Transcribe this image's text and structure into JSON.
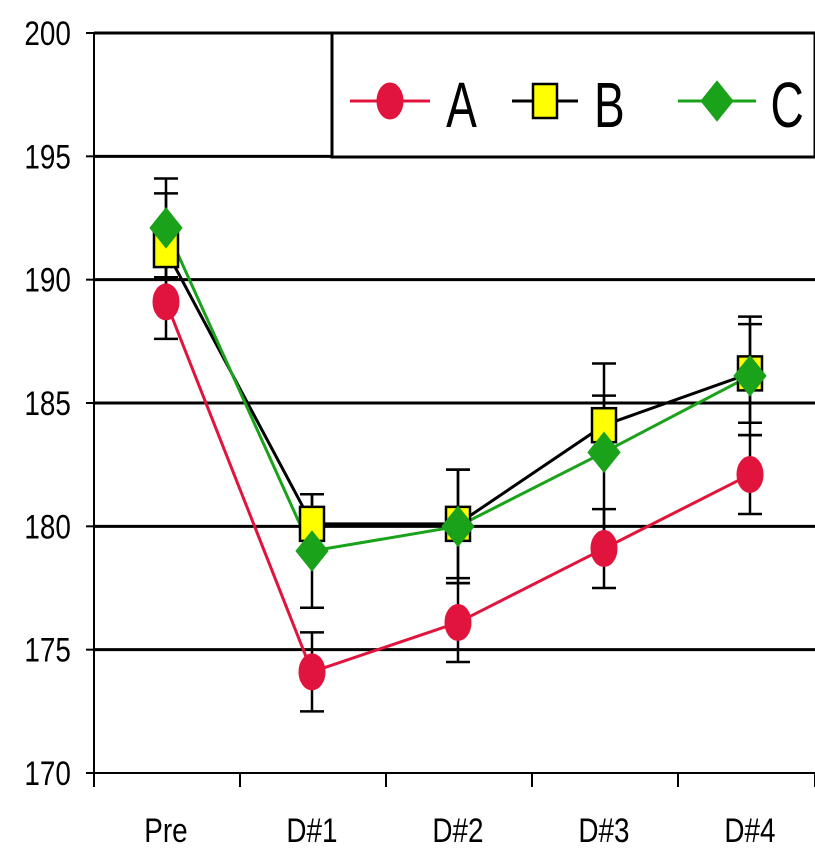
{
  "chart_data": {
    "type": "line",
    "categories": [
      "Pre",
      "D#1",
      "D#2",
      "D#3",
      "D#4"
    ],
    "ylim": [
      170,
      200
    ],
    "yticks": [
      "170",
      "175",
      "180",
      "185",
      "190",
      "195",
      "200"
    ],
    "grid": true,
    "legend_position": "top-right",
    "series": [
      {
        "name": "A",
        "color": "#e0143c",
        "marker": "circle",
        "values": [
          189.1,
          174.1,
          176.1,
          179.1,
          182.1
        ],
        "errors": [
          1.5,
          1.6,
          1.6,
          1.6,
          1.6
        ]
      },
      {
        "name": "B",
        "color": "#000000",
        "marker_fill": "#ffff00",
        "marker": "square",
        "values": [
          191.2,
          180.1,
          180.1,
          184.1,
          186.2
        ],
        "errors": [
          2.3,
          1.2,
          2.2,
          1.2,
          2.0
        ]
      },
      {
        "name": "C",
        "color": "#1aa21a",
        "marker": "diamond",
        "values": [
          192.1,
          179.0,
          180.0,
          183.0,
          186.1
        ],
        "errors": [
          2.0,
          2.3,
          2.3,
          3.6,
          2.4
        ]
      }
    ]
  }
}
